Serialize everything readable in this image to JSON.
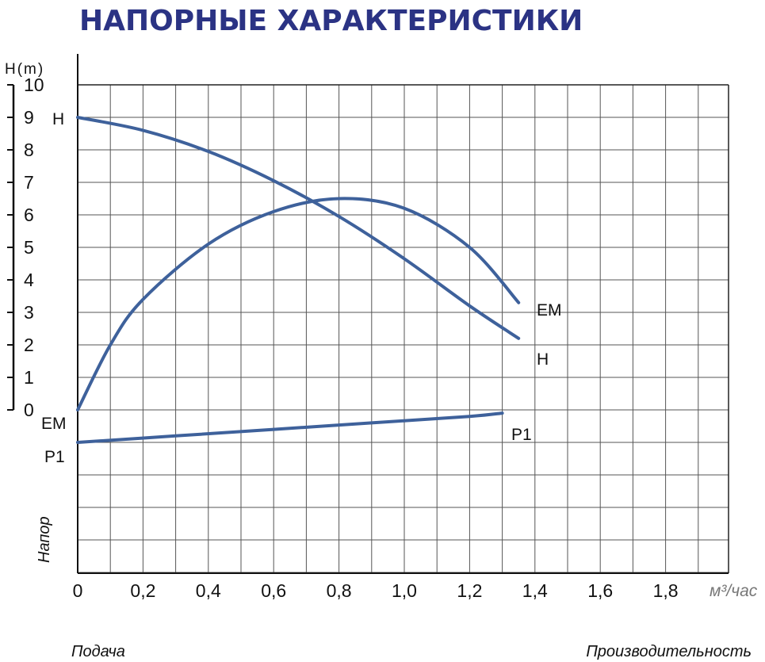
{
  "title": "НАПОРНЫЕ ХАРАКТЕРИСТИКИ",
  "colors": {
    "title": "#2b3384",
    "curve": "#3e619b",
    "grid": "#555555",
    "muted": "#777777"
  },
  "chart_data": {
    "type": "line",
    "title": "НАПОРНЫЕ ХАРАКТЕРИСТИКИ",
    "ylabel": "H(m)",
    "ylabel_side": "Напор",
    "xlabel_unit": "м³/час",
    "xlabel_left": "Подача",
    "xlabel_right": "Производительность",
    "xlim": [
      0,
      2.0
    ],
    "ylim": [
      -5,
      10
    ],
    "grid": true,
    "x_ticks": [
      {
        "v": 0,
        "label": "0"
      },
      {
        "v": 0.2,
        "label": "0,2"
      },
      {
        "v": 0.4,
        "label": "0,4"
      },
      {
        "v": 0.6,
        "label": "0,6"
      },
      {
        "v": 0.8,
        "label": "0,8"
      },
      {
        "v": 1.0,
        "label": "1,0"
      },
      {
        "v": 1.2,
        "label": "1,2"
      },
      {
        "v": 1.4,
        "label": "1,4"
      },
      {
        "v": 1.6,
        "label": "1,6"
      },
      {
        "v": 1.8,
        "label": "1,8"
      }
    ],
    "y_ticks": [
      {
        "v": 0,
        "label": "0"
      },
      {
        "v": 1,
        "label": "1"
      },
      {
        "v": 2,
        "label": "2"
      },
      {
        "v": 3,
        "label": "3"
      },
      {
        "v": 4,
        "label": "4"
      },
      {
        "v": 5,
        "label": "5"
      },
      {
        "v": 6,
        "label": "6"
      },
      {
        "v": 7,
        "label": "7"
      },
      {
        "v": 8,
        "label": "8"
      },
      {
        "v": 9,
        "label": "9"
      },
      {
        "v": 10,
        "label": "10"
      }
    ],
    "series": [
      {
        "name": "H",
        "start_label": "H",
        "end_label": "H",
        "points": [
          [
            0,
            9.0
          ],
          [
            0.2,
            8.6
          ],
          [
            0.4,
            7.95
          ],
          [
            0.6,
            7.05
          ],
          [
            0.8,
            5.95
          ],
          [
            1.0,
            4.65
          ],
          [
            1.2,
            3.2
          ],
          [
            1.35,
            2.2
          ]
        ]
      },
      {
        "name": "EM",
        "start_label": "EM",
        "end_label": "EM",
        "points": [
          [
            0,
            0
          ],
          [
            0.1,
            2.0
          ],
          [
            0.2,
            3.4
          ],
          [
            0.4,
            5.1
          ],
          [
            0.6,
            6.1
          ],
          [
            0.8,
            6.5
          ],
          [
            1.0,
            6.2
          ],
          [
            1.2,
            5.0
          ],
          [
            1.35,
            3.3
          ]
        ]
      },
      {
        "name": "P1",
        "start_label": "P1",
        "end_label": "P1",
        "points": [
          [
            0,
            -1.0
          ],
          [
            0.3,
            -0.8
          ],
          [
            0.6,
            -0.6
          ],
          [
            0.9,
            -0.4
          ],
          [
            1.2,
            -0.2
          ],
          [
            1.3,
            -0.1
          ]
        ]
      }
    ]
  }
}
